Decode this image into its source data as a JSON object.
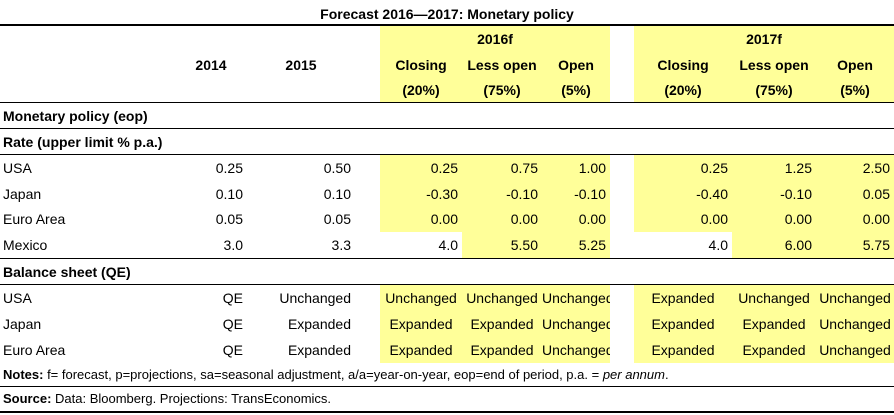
{
  "title": "Forecast 2016—2017: Monetary policy",
  "header": {
    "year_2016": "2016f",
    "year_2017": "2017f",
    "col_2014": "2014",
    "col_2015": "2015",
    "scenarios": [
      "Closing",
      "Less open",
      "Open"
    ],
    "probabilities": [
      "(20%)",
      "(75%)",
      "(5%)"
    ]
  },
  "sections": {
    "monetary_policy": "Monetary policy (eop)",
    "rate": "Rate (upper limit % p.a.)",
    "balance": "Balance sheet (QE)"
  },
  "rate_rows": [
    {
      "country": "USA",
      "y2014": "0.25",
      "y2015": "0.50",
      "f2016": [
        "0.25",
        "0.75",
        "1.00"
      ],
      "f2017": [
        "0.25",
        "1.25",
        "2.50"
      ]
    },
    {
      "country": "Japan",
      "y2014": "0.10",
      "y2015": "0.10",
      "f2016": [
        "-0.30",
        "-0.10",
        "-0.10"
      ],
      "f2017": [
        "-0.40",
        "-0.10",
        "0.05"
      ]
    },
    {
      "country": "Euro Area",
      "y2014": "0.05",
      "y2015": "0.05",
      "f2016": [
        "0.00",
        "0.00",
        "0.00"
      ],
      "f2017": [
        "0.00",
        "0.00",
        "0.00"
      ]
    },
    {
      "country": "Mexico",
      "y2014": "3.0",
      "y2015": "3.3",
      "f2016": [
        "4.0",
        "5.50",
        "5.25"
      ],
      "f2017": [
        "4.0",
        "6.00",
        "5.75"
      ]
    }
  ],
  "qe_rows": [
    {
      "country": "USA",
      "y2014": "QE",
      "y2015": "Unchanged",
      "f2016": [
        "Unchanged",
        "Unchanged",
        "Unchanged"
      ],
      "f2017": [
        "Expanded",
        "Unchanged",
        "Unchanged"
      ]
    },
    {
      "country": "Japan",
      "y2014": "QE",
      "y2015": "Expanded",
      "f2016": [
        "Expanded",
        "Expanded",
        "Unchanged"
      ],
      "f2017": [
        "Expanded",
        "Expanded",
        "Unchanged"
      ]
    },
    {
      "country": "Euro Area",
      "y2014": "QE",
      "y2015": "Expanded",
      "f2016": [
        "Expanded",
        "Expanded",
        "Unchanged"
      ],
      "f2017": [
        "Expanded",
        "Expanded",
        "Unchanged"
      ]
    }
  ],
  "notes": {
    "label": "Notes:",
    "text": " f= forecast, p=projections, sa=seasonal adjustment, a/a=year-on-year, eop=end of period, p.a. = ",
    "italic": "per annum",
    "end": "."
  },
  "source": {
    "label": "Source:",
    "text": " Data: Bloomberg. Projections: TransEconomics."
  },
  "colors": {
    "highlight": "#FFFF99"
  }
}
